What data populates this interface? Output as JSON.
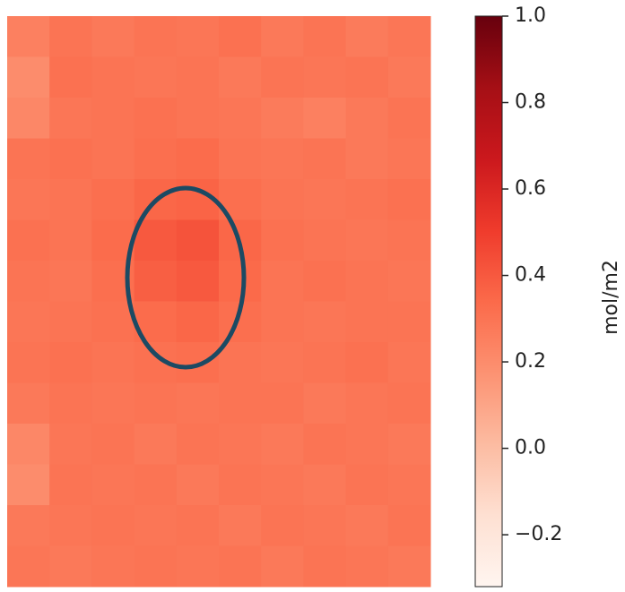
{
  "chart_data": {
    "type": "heatmap",
    "colormap": [
      "#fff5f0",
      "#fee0d2",
      "#fcbba1",
      "#fc9272",
      "#fb6a4a",
      "#ef3b2c",
      "#cb181d",
      "#a50f15",
      "#67000d"
    ],
    "clim": [
      -0.32,
      1.0
    ],
    "z": [
      [
        0.25,
        0.3,
        0.28,
        0.3,
        0.29,
        0.31,
        0.28,
        0.3,
        0.27,
        0.29
      ],
      [
        0.2,
        0.31,
        0.3,
        0.29,
        0.3,
        0.28,
        0.3,
        0.29,
        0.3,
        0.28
      ],
      [
        0.22,
        0.29,
        0.3,
        0.31,
        0.3,
        0.29,
        0.27,
        0.25,
        0.28,
        0.3
      ],
      [
        0.3,
        0.31,
        0.3,
        0.32,
        0.33,
        0.3,
        0.29,
        0.3,
        0.28,
        0.29
      ],
      [
        0.29,
        0.3,
        0.32,
        0.35,
        0.36,
        0.32,
        0.3,
        0.29,
        0.3,
        0.31
      ],
      [
        0.31,
        0.3,
        0.33,
        0.4,
        0.42,
        0.35,
        0.31,
        0.3,
        0.29,
        0.3
      ],
      [
        0.3,
        0.29,
        0.32,
        0.38,
        0.4,
        0.34,
        0.3,
        0.31,
        0.3,
        0.29
      ],
      [
        0.29,
        0.3,
        0.31,
        0.33,
        0.35,
        0.32,
        0.3,
        0.29,
        0.3,
        0.3
      ],
      [
        0.3,
        0.31,
        0.3,
        0.31,
        0.32,
        0.3,
        0.29,
        0.3,
        0.31,
        0.29
      ],
      [
        0.28,
        0.3,
        0.29,
        0.3,
        0.29,
        0.3,
        0.3,
        0.28,
        0.29,
        0.3
      ],
      [
        0.22,
        0.29,
        0.3,
        0.28,
        0.3,
        0.29,
        0.28,
        0.3,
        0.29,
        0.28
      ],
      [
        0.2,
        0.3,
        0.29,
        0.3,
        0.28,
        0.3,
        0.29,
        0.28,
        0.3,
        0.29
      ],
      [
        0.28,
        0.29,
        0.3,
        0.29,
        0.3,
        0.28,
        0.3,
        0.29,
        0.28,
        0.3
      ],
      [
        0.29,
        0.28,
        0.29,
        0.3,
        0.29,
        0.3,
        0.28,
        0.3,
        0.29,
        0.28
      ]
    ],
    "colorbar": {
      "label": "mol/m2",
      "ticks": [
        {
          "value": -0.2,
          "label": "−0.2"
        },
        {
          "value": 0,
          "label": "0.0"
        },
        0.2,
        0.4,
        0.6,
        0.8,
        {
          "value": 1,
          "label": "1.0"
        }
      ]
    }
  }
}
